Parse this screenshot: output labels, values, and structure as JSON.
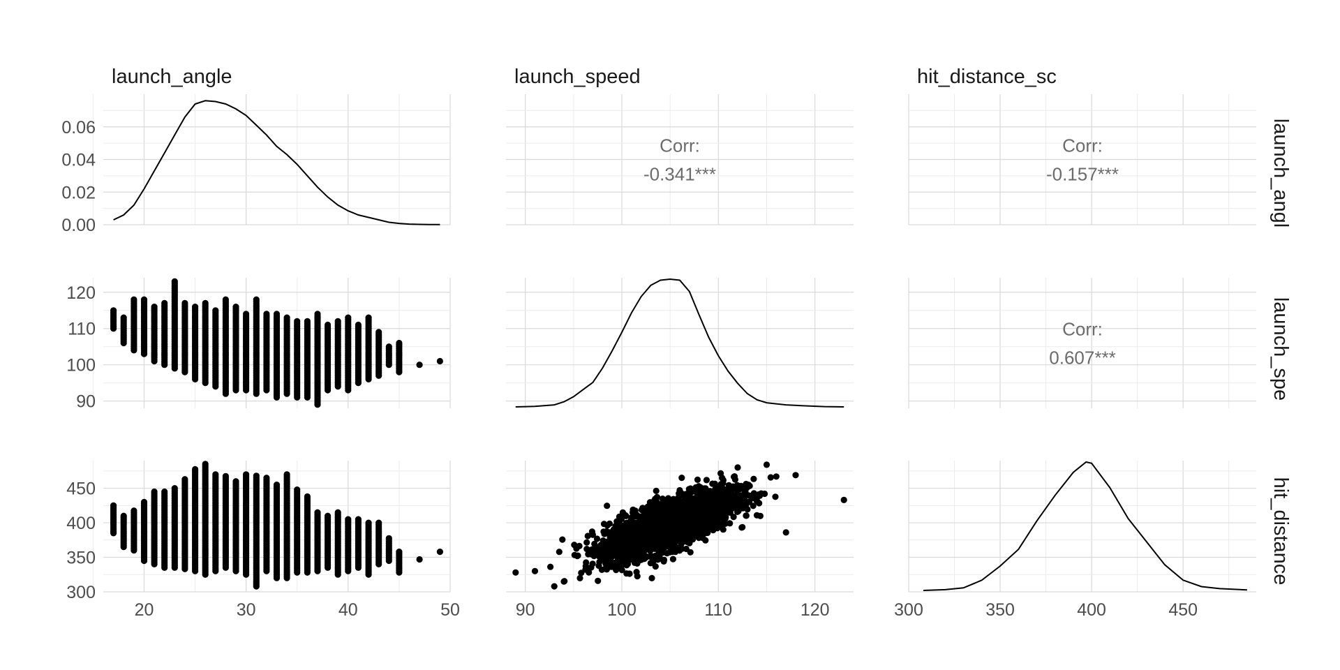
{
  "chart_data": {
    "type": "scatterplot-matrix",
    "variables": [
      "launch_angle",
      "launch_speed",
      "hit_distance_sc"
    ],
    "strip_labels": [
      "launch_angl",
      "launch_spe",
      "hit_distance"
    ],
    "axes": {
      "launch_angle": {
        "range": [
          16,
          50
        ],
        "ticks": [
          20,
          30,
          40,
          50
        ],
        "minor": [
          15,
          25,
          35,
          45
        ]
      },
      "launch_speed": {
        "range": [
          88,
          124
        ],
        "ticks": [
          90,
          100,
          110,
          120
        ],
        "minor": [
          95,
          105,
          115
        ]
      },
      "hit_distance_sc": {
        "range": [
          300,
          490
        ],
        "ticks": [
          300,
          350,
          400,
          450
        ],
        "minor": [
          325,
          375,
          425,
          475
        ]
      }
    },
    "row_axes": {
      "launch_angle": {
        "range": [
          0,
          0.08
        ],
        "ticks": [
          0.0,
          0.02,
          0.04,
          0.06
        ],
        "tick_labels": [
          "0.00",
          "0.02",
          "0.04",
          "0.06"
        ],
        "minor": [
          0.01,
          0.03,
          0.05,
          0.07
        ]
      },
      "launch_speed": {
        "range": [
          88,
          124
        ],
        "ticks": [
          90,
          100,
          110,
          120
        ],
        "tick_labels": [
          "90",
          "100",
          "110",
          "120"
        ],
        "minor": [
          95,
          105,
          115
        ]
      },
      "hit_distance_sc": {
        "range": [
          300,
          490
        ],
        "ticks": [
          300,
          350,
          400,
          450
        ],
        "tick_labels": [
          "300",
          "350",
          "400",
          "450"
        ],
        "minor": [
          325,
          375,
          425,
          475
        ]
      }
    },
    "correlations": [
      {
        "row": 0,
        "col": 1,
        "label": "Corr:",
        "value": "-0.341***"
      },
      {
        "row": 0,
        "col": 2,
        "label": "Corr:",
        "value": "-0.157***"
      },
      {
        "row": 1,
        "col": 2,
        "label": "Corr:",
        "value": "0.607***"
      }
    ],
    "densities": {
      "launch_angle": [
        [
          17,
          0.003
        ],
        [
          18,
          0.006
        ],
        [
          19,
          0.012
        ],
        [
          20,
          0.022
        ],
        [
          21,
          0.033
        ],
        [
          22,
          0.044
        ],
        [
          23,
          0.055
        ],
        [
          24,
          0.066
        ],
        [
          25,
          0.074
        ],
        [
          26,
          0.076
        ],
        [
          27,
          0.0755
        ],
        [
          28,
          0.074
        ],
        [
          29,
          0.071
        ],
        [
          30,
          0.067
        ],
        [
          31,
          0.061
        ],
        [
          32,
          0.055
        ],
        [
          33,
          0.048
        ],
        [
          34,
          0.043
        ],
        [
          35,
          0.037
        ],
        [
          36,
          0.03
        ],
        [
          37,
          0.023
        ],
        [
          38,
          0.017
        ],
        [
          39,
          0.012
        ],
        [
          40,
          0.0085
        ],
        [
          41,
          0.006
        ],
        [
          42,
          0.0045
        ],
        [
          43,
          0.003
        ],
        [
          44,
          0.0015
        ],
        [
          45,
          0.0008
        ],
        [
          46,
          0.0004
        ],
        [
          47,
          0.0002
        ],
        [
          48,
          0.0001
        ],
        [
          49,
          0.0001
        ]
      ],
      "launch_speed": [
        [
          89,
          0
        ],
        [
          91,
          0.0005
        ],
        [
          93,
          0.002
        ],
        [
          94,
          0.005
        ],
        [
          95,
          0.01
        ],
        [
          96,
          0.017
        ],
        [
          97,
          0.024
        ],
        [
          98,
          0.038
        ],
        [
          99,
          0.055
        ],
        [
          100,
          0.073
        ],
        [
          101,
          0.092
        ],
        [
          102,
          0.108
        ],
        [
          103,
          0.119
        ],
        [
          104,
          0.124
        ],
        [
          105,
          0.125
        ],
        [
          106,
          0.124
        ],
        [
          107,
          0.113
        ],
        [
          108,
          0.09
        ],
        [
          109,
          0.068
        ],
        [
          110,
          0.05
        ],
        [
          111,
          0.035
        ],
        [
          112,
          0.023
        ],
        [
          113,
          0.013
        ],
        [
          114,
          0.007
        ],
        [
          115,
          0.004
        ],
        [
          117,
          0.002
        ],
        [
          119,
          0.001
        ],
        [
          121,
          0.0003
        ],
        [
          123,
          0
        ]
      ],
      "hit_distance_sc": [
        [
          308,
          0
        ],
        [
          320,
          0.0003
        ],
        [
          330,
          0.001
        ],
        [
          340,
          0.004
        ],
        [
          350,
          0.0095
        ],
        [
          360,
          0.016
        ],
        [
          370,
          0.027
        ],
        [
          380,
          0.037
        ],
        [
          390,
          0.046
        ],
        [
          397,
          0.05
        ],
        [
          400,
          0.0495
        ],
        [
          410,
          0.04
        ],
        [
          420,
          0.028
        ],
        [
          430,
          0.019
        ],
        [
          440,
          0.01
        ],
        [
          450,
          0.004
        ],
        [
          460,
          0.0015
        ],
        [
          470,
          0.0007
        ],
        [
          485,
          0.0002
        ]
      ]
    },
    "scatter_angle_speed_ranges": [
      [
        17,
        110,
        115
      ],
      [
        18,
        106,
        113
      ],
      [
        19,
        104,
        118
      ],
      [
        20,
        103,
        118
      ],
      [
        21,
        101,
        116
      ],
      [
        22,
        100,
        117
      ],
      [
        23,
        99,
        123
      ],
      [
        24,
        98,
        117
      ],
      [
        25,
        96,
        116
      ],
      [
        26,
        95,
        117
      ],
      [
        27,
        94,
        115
      ],
      [
        28,
        92,
        118
      ],
      [
        29,
        93,
        116
      ],
      [
        30,
        93,
        114
      ],
      [
        31,
        92,
        118
      ],
      [
        32,
        93,
        114
      ],
      [
        33,
        91,
        114
      ],
      [
        34,
        92,
        113
      ],
      [
        35,
        91,
        112
      ],
      [
        36,
        91,
        112
      ],
      [
        37,
        89,
        114
      ],
      [
        38,
        93,
        111
      ],
      [
        39,
        94,
        112
      ],
      [
        40,
        93,
        113
      ],
      [
        41,
        95,
        111
      ],
      [
        42,
        96,
        113
      ],
      [
        43,
        97,
        109
      ],
      [
        44,
        100,
        105
      ],
      [
        45,
        98,
        106
      ],
      [
        47,
        100,
        100
      ],
      [
        49,
        101,
        101
      ]
    ],
    "scatter_angle_distance_ranges": [
      [
        17,
        385,
        425
      ],
      [
        18,
        365,
        412
      ],
      [
        19,
        360,
        418
      ],
      [
        20,
        345,
        430
      ],
      [
        21,
        340,
        445
      ],
      [
        22,
        335,
        445
      ],
      [
        23,
        335,
        450
      ],
      [
        24,
        333,
        465
      ],
      [
        25,
        330,
        478
      ],
      [
        26,
        325,
        485
      ],
      [
        27,
        330,
        470
      ],
      [
        28,
        335,
        468
      ],
      [
        29,
        330,
        460
      ],
      [
        30,
        325,
        470
      ],
      [
        31,
        308,
        470
      ],
      [
        32,
        330,
        465
      ],
      [
        33,
        320,
        455
      ],
      [
        34,
        320,
        470
      ],
      [
        35,
        328,
        450
      ],
      [
        36,
        328,
        440
      ],
      [
        37,
        330,
        415
      ],
      [
        38,
        335,
        412
      ],
      [
        39,
        325,
        415
      ],
      [
        40,
        330,
        405
      ],
      [
        41,
        335,
        405
      ],
      [
        42,
        325,
        400
      ],
      [
        43,
        340,
        400
      ],
      [
        44,
        345,
        378
      ],
      [
        45,
        328,
        360
      ],
      [
        47,
        347,
        347
      ],
      [
        49,
        358,
        358
      ]
    ]
  }
}
